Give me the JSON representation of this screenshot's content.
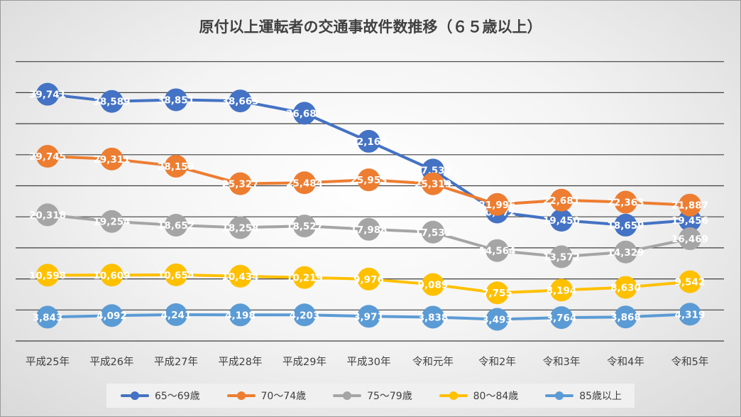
{
  "chart_data": {
    "type": "line",
    "title": "原付以上運転者の交通事故件数推移（６５歳以上）",
    "xlabel": "",
    "ylabel": "",
    "categories": [
      "平成25年",
      "平成26年",
      "平成27年",
      "平成28年",
      "平成29年",
      "平成30年",
      "令和元年",
      "令和2年",
      "令和3年",
      "令和4年",
      "令和5年"
    ],
    "series": [
      {
        "name": "65～69歳",
        "color": "#4472C4",
        "values": [
          39741,
          38589,
          38851,
          38665,
          36681,
          32160,
          27532,
          20772,
          19450,
          18659,
          19456
        ],
        "labels": [
          "39,741",
          "38,589",
          "38,851",
          "38,665",
          "36,681",
          "32,160",
          "27,532",
          "20,772",
          "19,450",
          "18,659",
          "19,456"
        ]
      },
      {
        "name": "70～74歳",
        "color": "#ED7D31",
        "values": [
          29745,
          29311,
          28153,
          25327,
          25484,
          25953,
          25319,
          21996,
          22681,
          22363,
          21887
        ],
        "labels": [
          "29,745",
          "29,311",
          "28,153",
          "25,327",
          "25,484",
          "25,953",
          "25,319",
          "21,996",
          "22,681",
          "22,363",
          "21,887"
        ]
      },
      {
        "name": "75～79歳",
        "color": "#A5A5A5",
        "values": [
          20318,
          19254,
          18652,
          18258,
          18527,
          17988,
          17532,
          14564,
          13572,
          14329,
          16469
        ],
        "labels": [
          "20,318",
          "19,254",
          "18,652",
          "18,258",
          "18,527",
          "17,988",
          "17,532",
          "14,564",
          "13,572",
          "14,329",
          "16,469"
        ]
      },
      {
        "name": "80～84歳",
        "color": "#FFC000",
        "values": [
          10598,
          10609,
          10654,
          10434,
          10219,
          9976,
          9089,
          7755,
          8194,
          8630,
          9542
        ],
        "labels": [
          "10,598",
          "10,609",
          "10,654",
          "10,434",
          "10,219",
          "9,976",
          "9,089",
          "7,755",
          "8,194",
          "8,630",
          "9,542"
        ]
      },
      {
        "name": "85歳以上",
        "color": "#5B9BD5",
        "values": [
          3843,
          4092,
          4241,
          4198,
          4203,
          3971,
          3838,
          3493,
          3764,
          3868,
          4319
        ],
        "labels": [
          "3,843",
          "4,092",
          "4,241",
          "4,198",
          "4,203",
          "3,971",
          "3,838",
          "3,493",
          "3,764",
          "3,868",
          "4,319"
        ]
      }
    ],
    "ylim": [
      0,
      45000
    ],
    "y_gridlines": [
      5000,
      10000,
      15000,
      20000,
      25000,
      30000,
      35000,
      40000,
      45000
    ],
    "grid": true,
    "legend_position": "bottom"
  }
}
